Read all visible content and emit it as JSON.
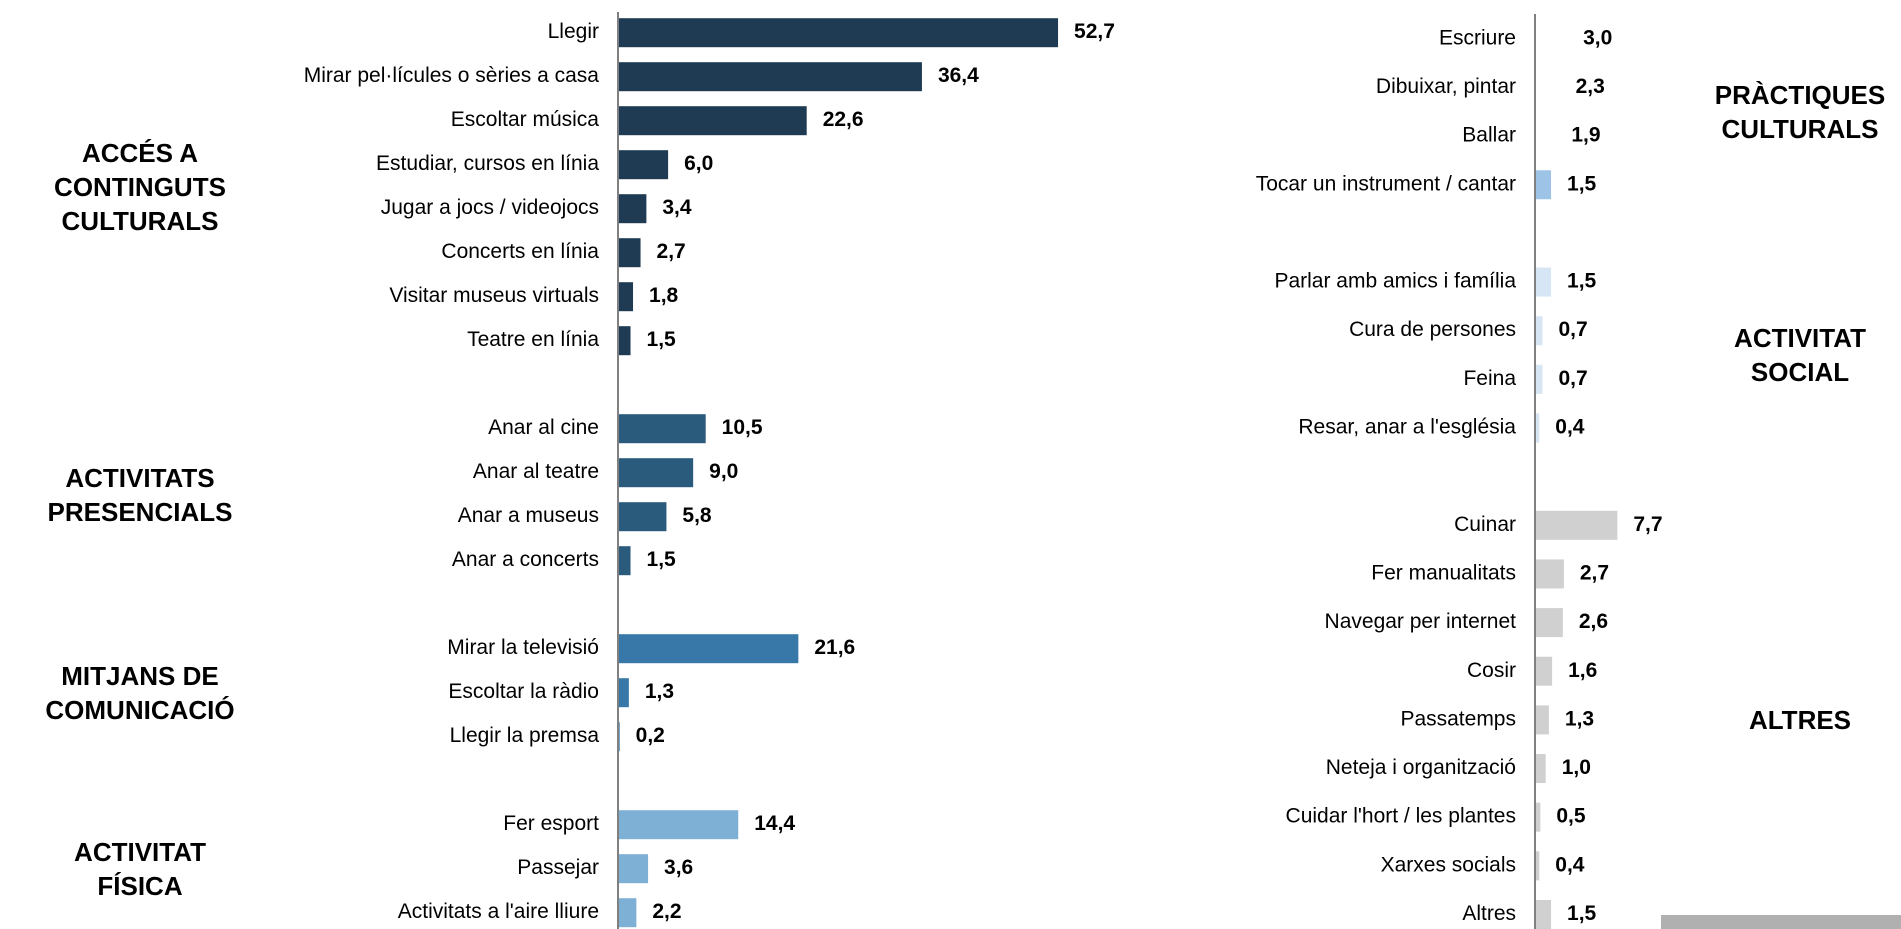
{
  "chart_data": [
    {
      "type": "bar",
      "orientation": "horizontal",
      "xlim": [
        0,
        60
      ],
      "groups": [
        {
          "name": "ACCÉS A CONTINGUTS CULTURALS",
          "color": "#1f3b53",
          "categories": [
            "Llegir",
            "Mirar pel·lícules o sèries a casa",
            "Escoltar música",
            "Estudiar, cursos en línia",
            "Jugar a jocs / videojocs",
            "Concerts en línia",
            "Visitar museus virtuals",
            "Teatre en línia"
          ],
          "values": [
            52.7,
            36.4,
            22.6,
            6.0,
            3.4,
            2.7,
            1.8,
            1.5
          ],
          "value_labels": [
            "52,7",
            "36,4",
            "22,6",
            "6,0",
            "3,4",
            "2,7",
            "1,8",
            "1,5"
          ]
        },
        {
          "name": "ACTIVITATS PRESENCIALS",
          "color": "#2a5a7c",
          "categories": [
            "Anar al cine",
            "Anar al teatre",
            "Anar a museus",
            "Anar a concerts"
          ],
          "values": [
            10.5,
            9.0,
            5.8,
            1.5
          ],
          "value_labels": [
            "10,5",
            "9,0",
            "5,8",
            "1,5"
          ]
        },
        {
          "name": "MITJANS DE COMUNICACIÓ",
          "color": "#3878a8",
          "categories": [
            "Mirar la televisió",
            "Escoltar la ràdio",
            "Llegir la premsa"
          ],
          "values": [
            21.6,
            1.3,
            0.2
          ],
          "value_labels": [
            "21,6",
            "1,3",
            "0,2"
          ]
        },
        {
          "name": "ACTIVITAT FÍSICA",
          "color": "#7eb0d5",
          "categories": [
            "Fer esport",
            "Passejar",
            "Activitats a l'aire lliure"
          ],
          "values": [
            14.4,
            3.6,
            2.2
          ],
          "value_labels": [
            "14,4",
            "3,6",
            "2,2"
          ]
        }
      ]
    },
    {
      "type": "bar",
      "orientation": "horizontal",
      "xlim": [
        0,
        10
      ],
      "groups": [
        {
          "name": "PRÀCTIQUES CULTURALS",
          "colors": [
            "#ffffff",
            "#ffffff",
            "#ffffff",
            "#9dc3e6"
          ],
          "categories": [
            "Escriure",
            "Dibuixar, pintar",
            "Ballar",
            "Tocar un instrument / cantar"
          ],
          "values": [
            3.0,
            2.3,
            1.9,
            1.5
          ],
          "value_labels": [
            "3,0",
            "2,3",
            "1,9",
            "1,5"
          ]
        },
        {
          "name": "ACTIVITAT SOCIAL",
          "color": "#d6e6f4",
          "categories": [
            "Parlar amb amics i família",
            "Cura de persones",
            "Feina",
            "Resar, anar a l'església"
          ],
          "values": [
            1.5,
            0.7,
            0.7,
            0.4
          ],
          "value_labels": [
            "1,5",
            "0,7",
            "0,7",
            "0,4"
          ]
        },
        {
          "name": "ALTRES",
          "color": "#d0d0d0",
          "categories": [
            "Cuinar",
            "Fer manualitats",
            "Navegar per internet",
            "Cosir",
            "Passatemps",
            "Neteja i organització",
            "Cuidar l'hort / les plantes",
            "Xarxes socials",
            "Altres"
          ],
          "values": [
            7.7,
            2.7,
            2.6,
            1.6,
            1.3,
            1.0,
            0.5,
            0.4,
            1.5
          ],
          "value_labels": [
            "7,7",
            "2,7",
            "2,6",
            "1,6",
            "1,3",
            "1,0",
            "0,5",
            "0,4",
            "1,5"
          ]
        }
      ]
    }
  ]
}
